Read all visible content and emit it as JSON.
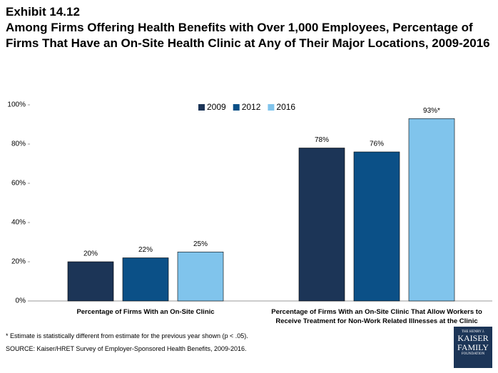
{
  "chart_data": {
    "type": "bar",
    "title": "Exhibit 14.12",
    "subtitle": "Among Firms Offering Health Benefits with Over 1,000 Employees, Percentage of Firms That Have an On-Site Health Clinic at Any of Their Major Locations, 2009-2016",
    "categories": [
      "Percentage of Firms With an On-Site Clinic",
      "Percentage of Firms With an On-Site Clinic That Allow Workers to Receive Treatment for Non-Work Related Illnesses at the Clinic"
    ],
    "series": [
      {
        "name": "2009",
        "color": "#1c3557",
        "values": [
          20,
          78
        ],
        "value_labels": [
          "20%",
          "78%"
        ]
      },
      {
        "name": "2012",
        "color": "#0b5087",
        "values": [
          22,
          76
        ],
        "value_labels": [
          "22%",
          "76%"
        ]
      },
      {
        "name": "2016",
        "color": "#80c4ec",
        "values": [
          25,
          93
        ],
        "value_labels": [
          "25%",
          "93%*"
        ]
      }
    ],
    "ylim": [
      0,
      100
    ],
    "yticks": [
      {
        "value": 0,
        "label": "0%"
      },
      {
        "value": 20,
        "label": "20%"
      },
      {
        "value": 40,
        "label": "40%"
      },
      {
        "value": 60,
        "label": "60%"
      },
      {
        "value": 80,
        "label": "80%"
      },
      {
        "value": 100,
        "label": "100%"
      }
    ],
    "grid": false,
    "legend": "top",
    "note": "* Estimate is statistically different from estimate for the previous year shown (p < .05).",
    "source": "SOURCE: Kaiser/HRET Survey of Employer-Sponsored Health Benefits, 2009-2016.",
    "logo": [
      "THE HENRY J.",
      "KAISER",
      "FAMILY",
      "FOUNDATION"
    ]
  }
}
